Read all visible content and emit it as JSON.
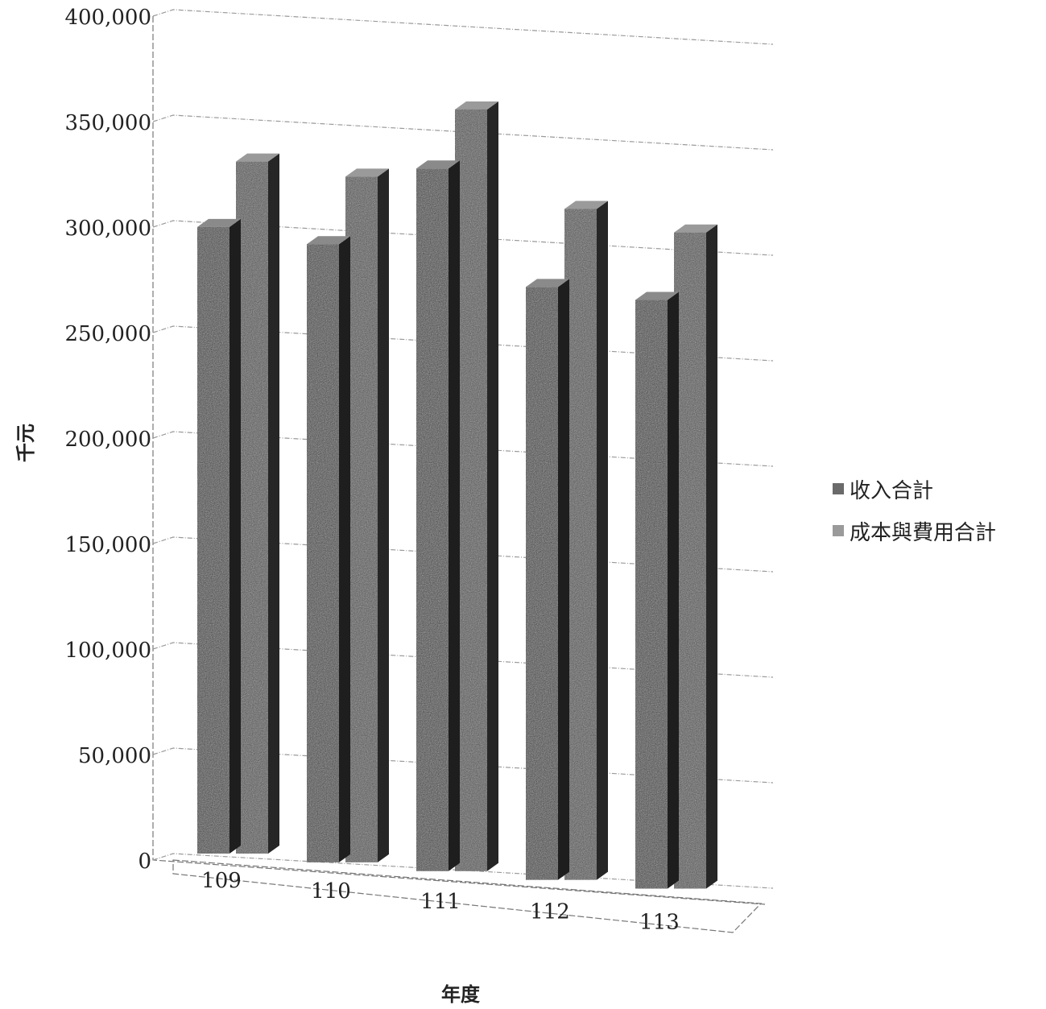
{
  "chart_data": {
    "type": "bar",
    "style": "3d-clustered-column",
    "categories": [
      "109",
      "110",
      "111",
      "112",
      "113"
    ],
    "series": [
      {
        "name": "收入合計",
        "values": [
          297000,
          293000,
          333000,
          281000,
          279000
        ]
      },
      {
        "name": "成本與費用合計",
        "values": [
          328000,
          325000,
          361000,
          318000,
          311000
        ]
      }
    ],
    "xlabel": "年度",
    "ylabel": "千元",
    "ylim": [
      0,
      400000
    ],
    "yticks": [
      "0",
      "50,000",
      "100,000",
      "150,000",
      "200,000",
      "250,000",
      "300,000",
      "350,000",
      "400,000"
    ],
    "grid": true,
    "legend_position": "right",
    "colors": {
      "series1": "#4a4a4a",
      "series2": "#5a5a5a"
    }
  }
}
